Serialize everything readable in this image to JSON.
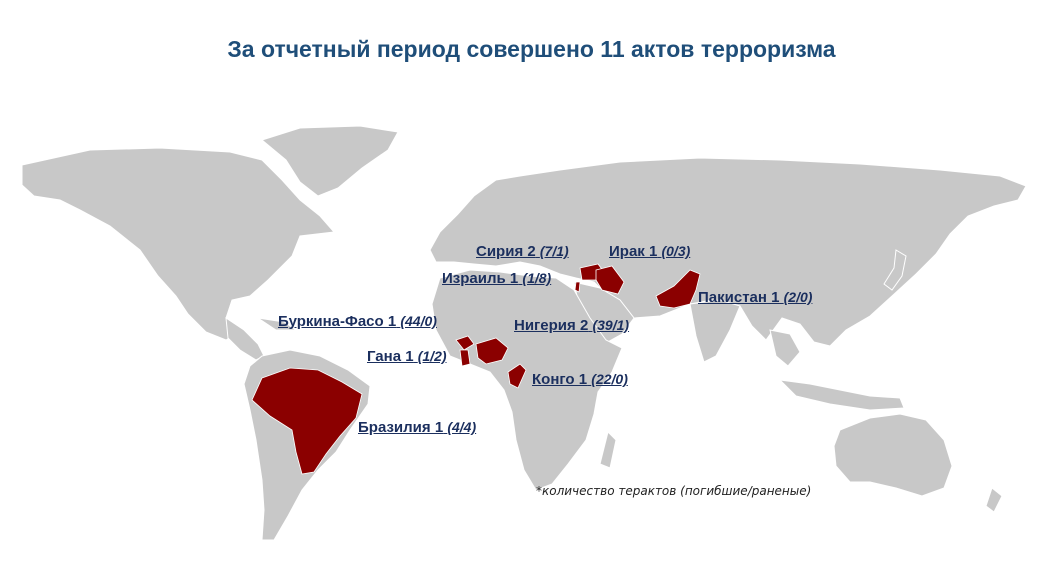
{
  "title": "За отчетный период совершено 11 актов терроризма",
  "footnote": "*количество терактов (погибшие/раненые)",
  "colors": {
    "land": "#c8c8c8",
    "border": "#ffffff",
    "highlight": "#8b0000",
    "label": "#1b2f5e",
    "title": "#1f4e79"
  },
  "countries": [
    {
      "name": "Сирия 2",
      "stats": "(7/1)"
    },
    {
      "name": "Ирак 1",
      "stats": "(0/3)"
    },
    {
      "name": "Израиль 1",
      "stats": "(1/8)"
    },
    {
      "name": "Пакистан 1",
      "stats": "(2/0)"
    },
    {
      "name": "Буркина-Фасо 1",
      "stats": "(44/0)"
    },
    {
      "name": "Нигерия 2",
      "stats": "(39/1)"
    },
    {
      "name": "Гана 1",
      "stats": "(1/2)"
    },
    {
      "name": "Конго 1",
      "stats": "(22/0)"
    },
    {
      "name": "Бразилия 1",
      "stats": "(4/4)"
    }
  ]
}
